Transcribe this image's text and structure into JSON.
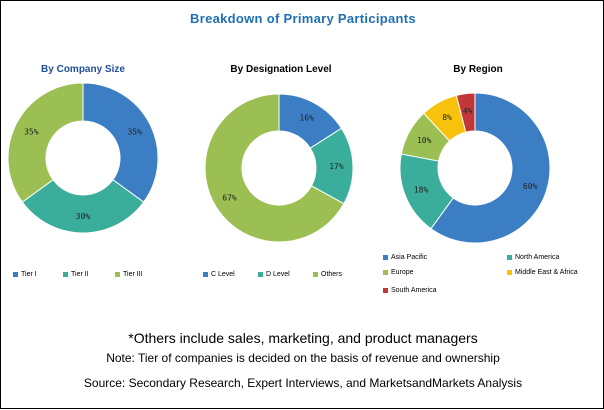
{
  "title": "Breakdown of Primary Participants",
  "chart_data": [
    {
      "type": "pie",
      "title": "By Company Size",
      "categories": [
        "Tier I",
        "Tier II",
        "Tier III"
      ],
      "values": [
        35,
        30,
        35
      ],
      "labels": [
        "35%",
        "30%",
        "35%"
      ],
      "colors": [
        "#3c7ec4",
        "#3aae9a",
        "#9bbf52"
      ]
    },
    {
      "type": "pie",
      "title": "By Designation Level",
      "categories": [
        "C Level",
        "D Level",
        "Others"
      ],
      "values": [
        16,
        17,
        67
      ],
      "labels": [
        "16%",
        "17%",
        "67%"
      ],
      "colors": [
        "#3c7ec4",
        "#3aae9a",
        "#9bbf52"
      ]
    },
    {
      "type": "pie",
      "title": "By Region",
      "categories": [
        "Asia Pacific",
        "North America",
        "Europe",
        "Middle East & Africa",
        "South America"
      ],
      "values": [
        60,
        18,
        10,
        8,
        4
      ],
      "labels": [
        "60%",
        "18%",
        "10%",
        "8%",
        "4%"
      ],
      "colors": [
        "#3c7ec4",
        "#3aae9a",
        "#9bbf52",
        "#f7c20c",
        "#c2383a"
      ]
    }
  ],
  "notes": {
    "others": "*Others include sales, marketing, and product managers",
    "tier": "Note: Tier of companies is decided on the basis of revenue and ownership",
    "source": "Source: Secondary Research, Expert Interviews, and MarketsandMarkets Analysis"
  }
}
